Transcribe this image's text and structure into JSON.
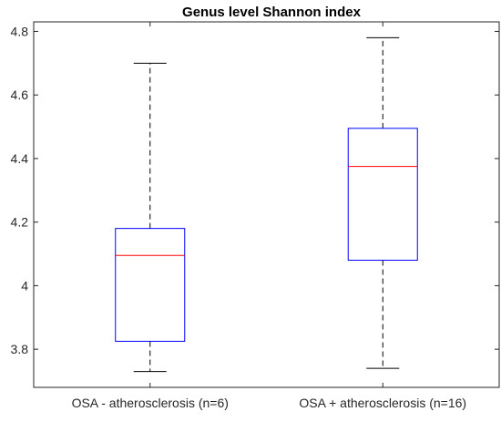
{
  "chart_data": {
    "type": "box",
    "title": "Genus level Shannon index",
    "xlabel": "",
    "ylabel": "",
    "ylim": [
      3.68,
      4.83
    ],
    "yticks": [
      3.8,
      4,
      4.2,
      4.4,
      4.6,
      4.8
    ],
    "ytick_labels": [
      "3.8",
      "4",
      "4.2",
      "4.4",
      "4.6",
      "4.8"
    ],
    "categories": [
      "OSA - atherosclerosis (n=6)",
      "OSA + atherosclerosis (n=16)"
    ],
    "boxes": [
      {
        "category": "OSA - atherosclerosis (n=6)",
        "whisker_low": 3.73,
        "q1": 3.825,
        "median": 4.095,
        "q3": 4.18,
        "whisker_high": 4.7
      },
      {
        "category": "OSA + atherosclerosis (n=16)",
        "whisker_low": 3.74,
        "q1": 4.08,
        "median": 4.375,
        "q3": 4.495,
        "whisker_high": 4.78
      }
    ],
    "grid": false,
    "colors": {
      "box": "#0000ff",
      "median": "#ff0000",
      "whisker": "#000000",
      "axis": "#262626"
    }
  }
}
